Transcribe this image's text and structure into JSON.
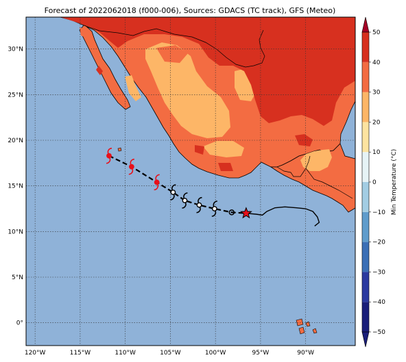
{
  "title": "Forecast of 2022062018 (f000-006), Sources: GDACS (TC track), GFS (Meteo)",
  "map": {
    "lon_range": [
      -121,
      -84.5
    ],
    "lat_range": [
      -2.5,
      33.5
    ],
    "grid": true,
    "lon_ticks": [
      {
        "value": -120,
        "label": "120°W"
      },
      {
        "value": -115,
        "label": "115°W"
      },
      {
        "value": -110,
        "label": "110°W"
      },
      {
        "value": -105,
        "label": "105°W"
      },
      {
        "value": -100,
        "label": "100°W"
      },
      {
        "value": -95,
        "label": "95°W"
      },
      {
        "value": -90,
        "label": "90°W"
      }
    ],
    "lat_ticks": [
      {
        "value": 30,
        "label": "30°N"
      },
      {
        "value": 25,
        "label": "25°N"
      },
      {
        "value": 20,
        "label": "20°N"
      },
      {
        "value": 15,
        "label": "15°N"
      },
      {
        "value": 10,
        "label": "10°N"
      },
      {
        "value": 5,
        "label": "5°N"
      },
      {
        "value": 0,
        "label": "0°"
      }
    ],
    "ocean_color": "#8fb2d8"
  },
  "colorbar": {
    "label": "Min Temperature (°C)",
    "ticks": [
      "50",
      "40",
      "30",
      "20",
      "10",
      "0",
      "−10",
      "−20",
      "−30",
      "−40",
      "−50"
    ],
    "colors": [
      "#1a1f7a",
      "#2b3aa0",
      "#3b6fb6",
      "#5f9ccc",
      "#a3cde3",
      "#e6f3f6",
      "#fde3a0",
      "#fdb667",
      "#f36c42",
      "#d7301f",
      "#a50026"
    ]
  },
  "land_colors": {
    "hot": "#d7301f",
    "warm": "#f36c42",
    "mild": "#fdb667"
  },
  "track": {
    "observed": [
      {
        "lon": -111.8,
        "lat": 18.3,
        "color": "#e8101a"
      },
      {
        "lon": -109.3,
        "lat": 17.1,
        "color": "#e8101a"
      },
      {
        "lon": -106.5,
        "lat": 15.4,
        "color": "#e8101a"
      },
      {
        "lon": -104.7,
        "lat": 14.3,
        "color": "#000000"
      },
      {
        "lon": -103.4,
        "lat": 13.4,
        "color": "#000000"
      },
      {
        "lon": -101.8,
        "lat": 12.9,
        "color": "#000000"
      },
      {
        "lon": -100.1,
        "lat": 12.5,
        "color": "#000000"
      },
      {
        "lon": -98.2,
        "lat": 12.1,
        "color": "#000000"
      }
    ],
    "current": {
      "lon": -96.6,
      "lat": 12.0,
      "color": "#e8101a"
    },
    "forecast": [
      [
        -96.6,
        12.0
      ],
      [
        -95.5,
        11.9
      ],
      [
        -94.8,
        11.8
      ],
      [
        -94.3,
        12.2
      ],
      [
        -93.4,
        12.6
      ],
      [
        -92.3,
        12.7
      ],
      [
        -91.0,
        12.6
      ],
      [
        -90.0,
        12.5
      ],
      [
        -89.2,
        12.2
      ],
      [
        -88.7,
        11.6
      ],
      [
        -88.5,
        11.0
      ],
      [
        -89.0,
        10.6
      ]
    ]
  }
}
